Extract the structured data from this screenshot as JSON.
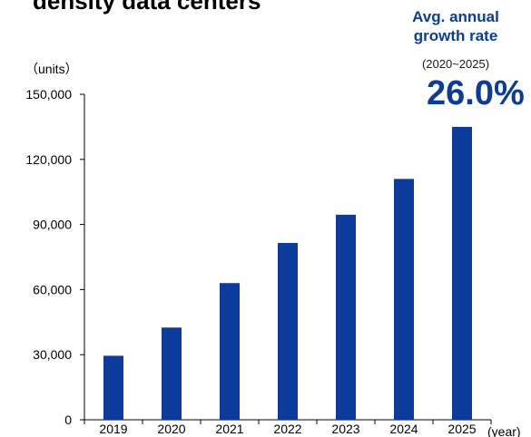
{
  "chart_data": {
    "type": "bar",
    "title": "density data centers",
    "unit_label": "（units）",
    "xlabel": "(year)",
    "ylabel": "",
    "categories": [
      "2019",
      "2020",
      "2021",
      "2022",
      "2023",
      "2024",
      "2025"
    ],
    "values": [
      29500,
      42500,
      63000,
      81500,
      94500,
      111000,
      135000
    ],
    "ylim": [
      0,
      150000
    ],
    "yticks": [
      0,
      30000,
      60000,
      90000,
      120000,
      150000
    ],
    "ytick_labels": [
      "0",
      "30,000",
      "60,000",
      "90,000",
      "120,000",
      "150,000"
    ],
    "grid": false,
    "legend": "none",
    "bar_color": "#0b3c9c",
    "annotation": {
      "label": "Avg. annual growth rate",
      "period": "(2020~2025)",
      "value": "26.0%",
      "color": "#0b3c9c"
    }
  }
}
